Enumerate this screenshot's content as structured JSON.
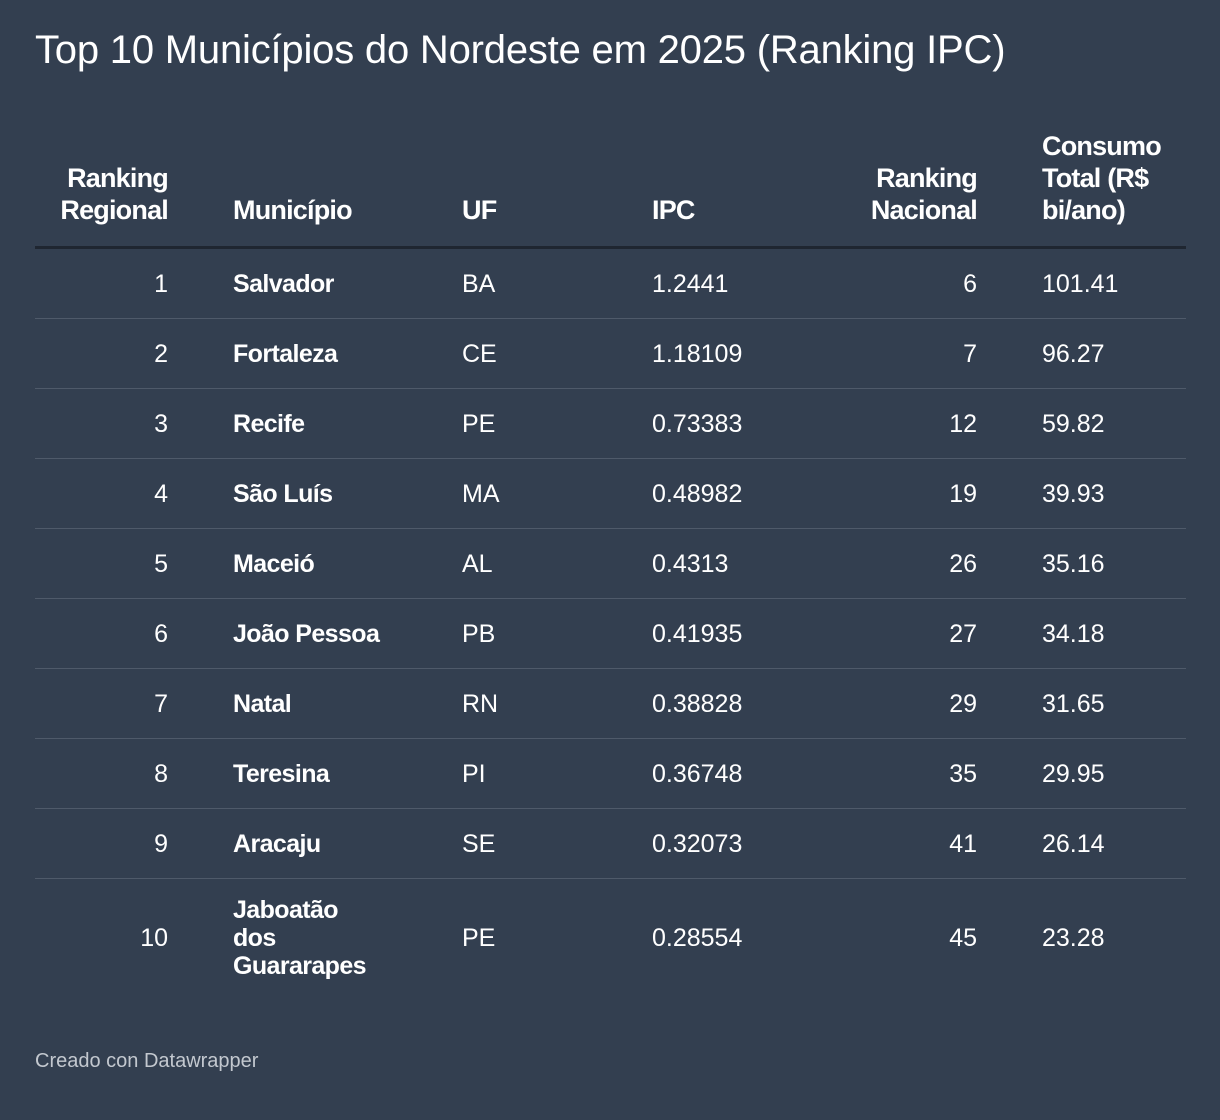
{
  "title": "Top 10 Municípios do Nordeste em 2025 (Ranking IPC)",
  "footer": "Creado con Datawrapper",
  "colors": {
    "background": "#333f50",
    "text": "#ffffff",
    "row_divider": "#4f5a6a",
    "header_divider": "#1f2631",
    "footer_text": "#c3c8cf"
  },
  "chart_data": {
    "type": "table",
    "title": "Top 10 Municípios do Nordeste em 2025 (Ranking IPC)",
    "columns": [
      "Ranking Regional",
      "Município",
      "UF",
      "IPC",
      "Ranking Nacional",
      "Consumo Total (R$ bi/ano)"
    ],
    "rows": [
      [
        "1",
        "Salvador",
        "BA",
        "1.2441",
        "6",
        "101.41"
      ],
      [
        "2",
        "Fortaleza",
        "CE",
        "1.18109",
        "7",
        "96.27"
      ],
      [
        "3",
        "Recife",
        "PE",
        "0.73383",
        "12",
        "59.82"
      ],
      [
        "4",
        "São Luís",
        "MA",
        "0.48982",
        "19",
        "39.93"
      ],
      [
        "5",
        "Maceió",
        "AL",
        "0.4313",
        "26",
        "35.16"
      ],
      [
        "6",
        "João Pessoa",
        "PB",
        "0.41935",
        "27",
        "34.18"
      ],
      [
        "7",
        "Natal",
        "RN",
        "0.38828",
        "29",
        "31.65"
      ],
      [
        "8",
        "Teresina",
        "PI",
        "0.36748",
        "35",
        "29.95"
      ],
      [
        "9",
        "Aracaju",
        "SE",
        "0.32073",
        "41",
        "26.14"
      ],
      [
        "10",
        "Jaboatão dos Guararapes",
        "PE",
        "0.28554",
        "45",
        "23.28"
      ]
    ]
  }
}
